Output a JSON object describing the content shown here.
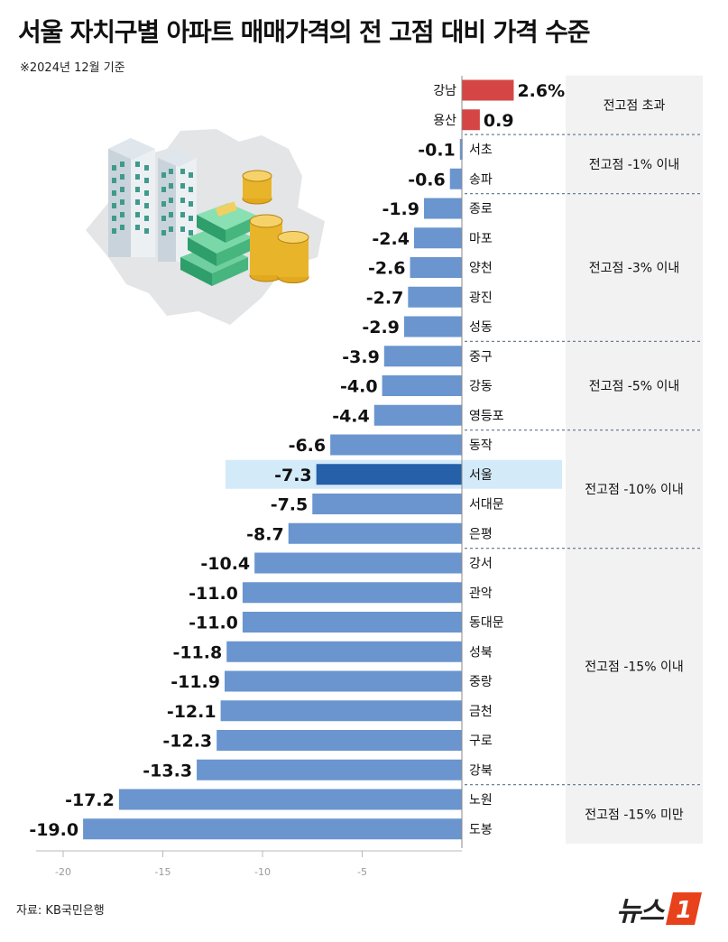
{
  "header": {
    "title": "서울 자치구별 아파트 매매가격의 전 고점 대비 가격 수준",
    "note": "※2024년 12월 기준"
  },
  "footer": {
    "source": "자료: KB국민은행",
    "logo_text": "뉴스",
    "logo_badge": "1"
  },
  "colors": {
    "positive": "#d64545",
    "negative": "#6a95cf",
    "highlight": "#2560a8",
    "highlight_bg": "#d3eaf8",
    "group_bg": "#f2f2f2"
  },
  "chart_data": {
    "type": "bar",
    "orientation": "horizontal",
    "categories": [
      "강남",
      "용산",
      "서초",
      "송파",
      "종로",
      "마포",
      "양천",
      "광진",
      "성동",
      "중구",
      "강동",
      "영등포",
      "동작",
      "서울",
      "서대문",
      "은평",
      "강서",
      "관악",
      "동대문",
      "성북",
      "중랑",
      "금천",
      "구로",
      "강북",
      "노원",
      "도봉"
    ],
    "values": [
      2.6,
      0.9,
      -0.1,
      -0.6,
      -1.9,
      -2.4,
      -2.6,
      -2.7,
      -2.9,
      -3.9,
      -4.0,
      -4.4,
      -6.6,
      -7.3,
      -7.5,
      -8.7,
      -10.4,
      -11.0,
      -11.0,
      -11.8,
      -11.9,
      -12.1,
      -12.3,
      -13.3,
      -17.2,
      -19.0
    ],
    "value_labels": [
      "2.6%",
      "0.9",
      "-0.1",
      "-0.6",
      "-1.9",
      "-2.4",
      "-2.6",
      "-2.7",
      "-2.9",
      "-3.9",
      "-4.0",
      "-4.4",
      "-6.6",
      "-7.3",
      "-7.5",
      "-8.7",
      "-10.4",
      "-11.0",
      "-11.0",
      "-11.8",
      "-11.9",
      "-12.1",
      "-12.3",
      "-13.3",
      "-17.2",
      "-19.0"
    ],
    "highlight": "서울",
    "x_ticks": [
      -20,
      -15,
      -10,
      -5
    ],
    "x_tick_labels": [
      "-20",
      "-15",
      "-10",
      "-5"
    ],
    "xlim": [
      -20,
      3.5
    ],
    "groups": [
      {
        "label": "전고점 초과",
        "from": 0,
        "to": 1
      },
      {
        "label": "전고점 -1% 이내",
        "from": 2,
        "to": 3
      },
      {
        "label": "전고점 -3% 이내",
        "from": 4,
        "to": 8
      },
      {
        "label": "전고점 -5% 이내",
        "from": 9,
        "to": 11
      },
      {
        "label": "전고점 -10% 이내",
        "from": 12,
        "to": 15
      },
      {
        "label": "전고점 -15% 이내",
        "from": 16,
        "to": 23
      },
      {
        "label": "전고점 -15% 미만",
        "from": 24,
        "to": 25
      }
    ],
    "grid": false
  }
}
